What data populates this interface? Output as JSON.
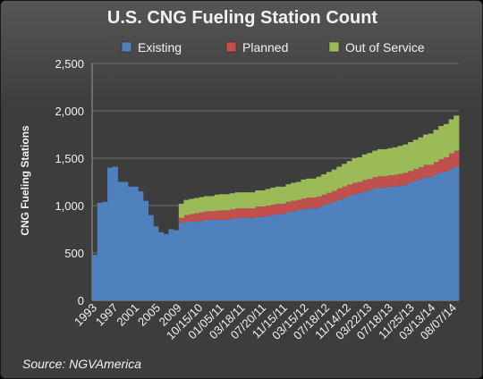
{
  "chart_data": {
    "type": "area",
    "title": "U.S. CNG Fueling Station Count",
    "ylabel": "CNG Fueling Stations",
    "ylim": [
      0,
      2500
    ],
    "yticks": [
      0,
      500,
      "1,000",
      "1,500",
      "2,000",
      "2,500"
    ],
    "x_tick_labels": [
      "1993",
      "1997",
      "2001",
      "2005",
      "2009",
      "10/15/10",
      "01/05/11",
      "03/18/11",
      "07/20/11",
      "11/15/11",
      "03/15/12",
      "07/18/12",
      "11/14/12",
      "03/22/13",
      "07/18/13",
      "11/25/13",
      "03/13/14",
      "08/07/14"
    ],
    "grid": true,
    "legend_position": "top",
    "stacked": true,
    "series": [
      {
        "name": "Existing",
        "color": "#4f81bd",
        "values": [
          480,
          1030,
          1040,
          1400,
          1410,
          1250,
          1250,
          1200,
          1200,
          1150,
          1050,
          900,
          780,
          720,
          700,
          750,
          740,
          820,
          830,
          830,
          830,
          840,
          850,
          850,
          850,
          850,
          850,
          860,
          870,
          870,
          870,
          870,
          880,
          880,
          890,
          900,
          910,
          910,
          930,
          940,
          950,
          960,
          970,
          970,
          980,
          1000,
          1020,
          1040,
          1060,
          1080,
          1100,
          1120,
          1130,
          1150,
          1160,
          1180,
          1190,
          1190,
          1200,
          1200,
          1210,
          1220,
          1240,
          1260,
          1280,
          1300,
          1300,
          1330,
          1350,
          1360,
          1390,
          1410
        ]
      },
      {
        "name": "Planned",
        "color": "#c0504d",
        "values": [
          0,
          0,
          0,
          0,
          0,
          0,
          0,
          0,
          0,
          0,
          0,
          0,
          0,
          0,
          0,
          0,
          0,
          50,
          70,
          80,
          90,
          90,
          90,
          90,
          95,
          100,
          100,
          100,
          100,
          100,
          100,
          100,
          110,
          110,
          110,
          110,
          110,
          110,
          110,
          110,
          110,
          115,
          115,
          115,
          115,
          115,
          115,
          115,
          120,
          120,
          120,
          120,
          120,
          120,
          120,
          120,
          120,
          120,
          120,
          125,
          125,
          125,
          125,
          125,
          125,
          130,
          130,
          130,
          140,
          150,
          160,
          170
        ]
      },
      {
        "name": "Out of Service",
        "color": "#9bbb59",
        "values": [
          0,
          0,
          0,
          0,
          0,
          0,
          0,
          0,
          0,
          0,
          0,
          0,
          0,
          0,
          0,
          0,
          0,
          150,
          160,
          160,
          160,
          160,
          160,
          160,
          170,
          170,
          170,
          170,
          170,
          170,
          170,
          170,
          170,
          170,
          175,
          180,
          180,
          180,
          185,
          190,
          190,
          200,
          200,
          200,
          210,
          215,
          220,
          225,
          230,
          240,
          250,
          260,
          260,
          270,
          275,
          280,
          285,
          285,
          285,
          290,
          295,
          300,
          305,
          310,
          315,
          320,
          330,
          340,
          350,
          350,
          360,
          370
        ]
      }
    ]
  },
  "source": "Source: NGVAmerica",
  "colors": {
    "background": "#3d3d3d",
    "text": "#f2f2f2",
    "grid": "#6e6e6e"
  }
}
